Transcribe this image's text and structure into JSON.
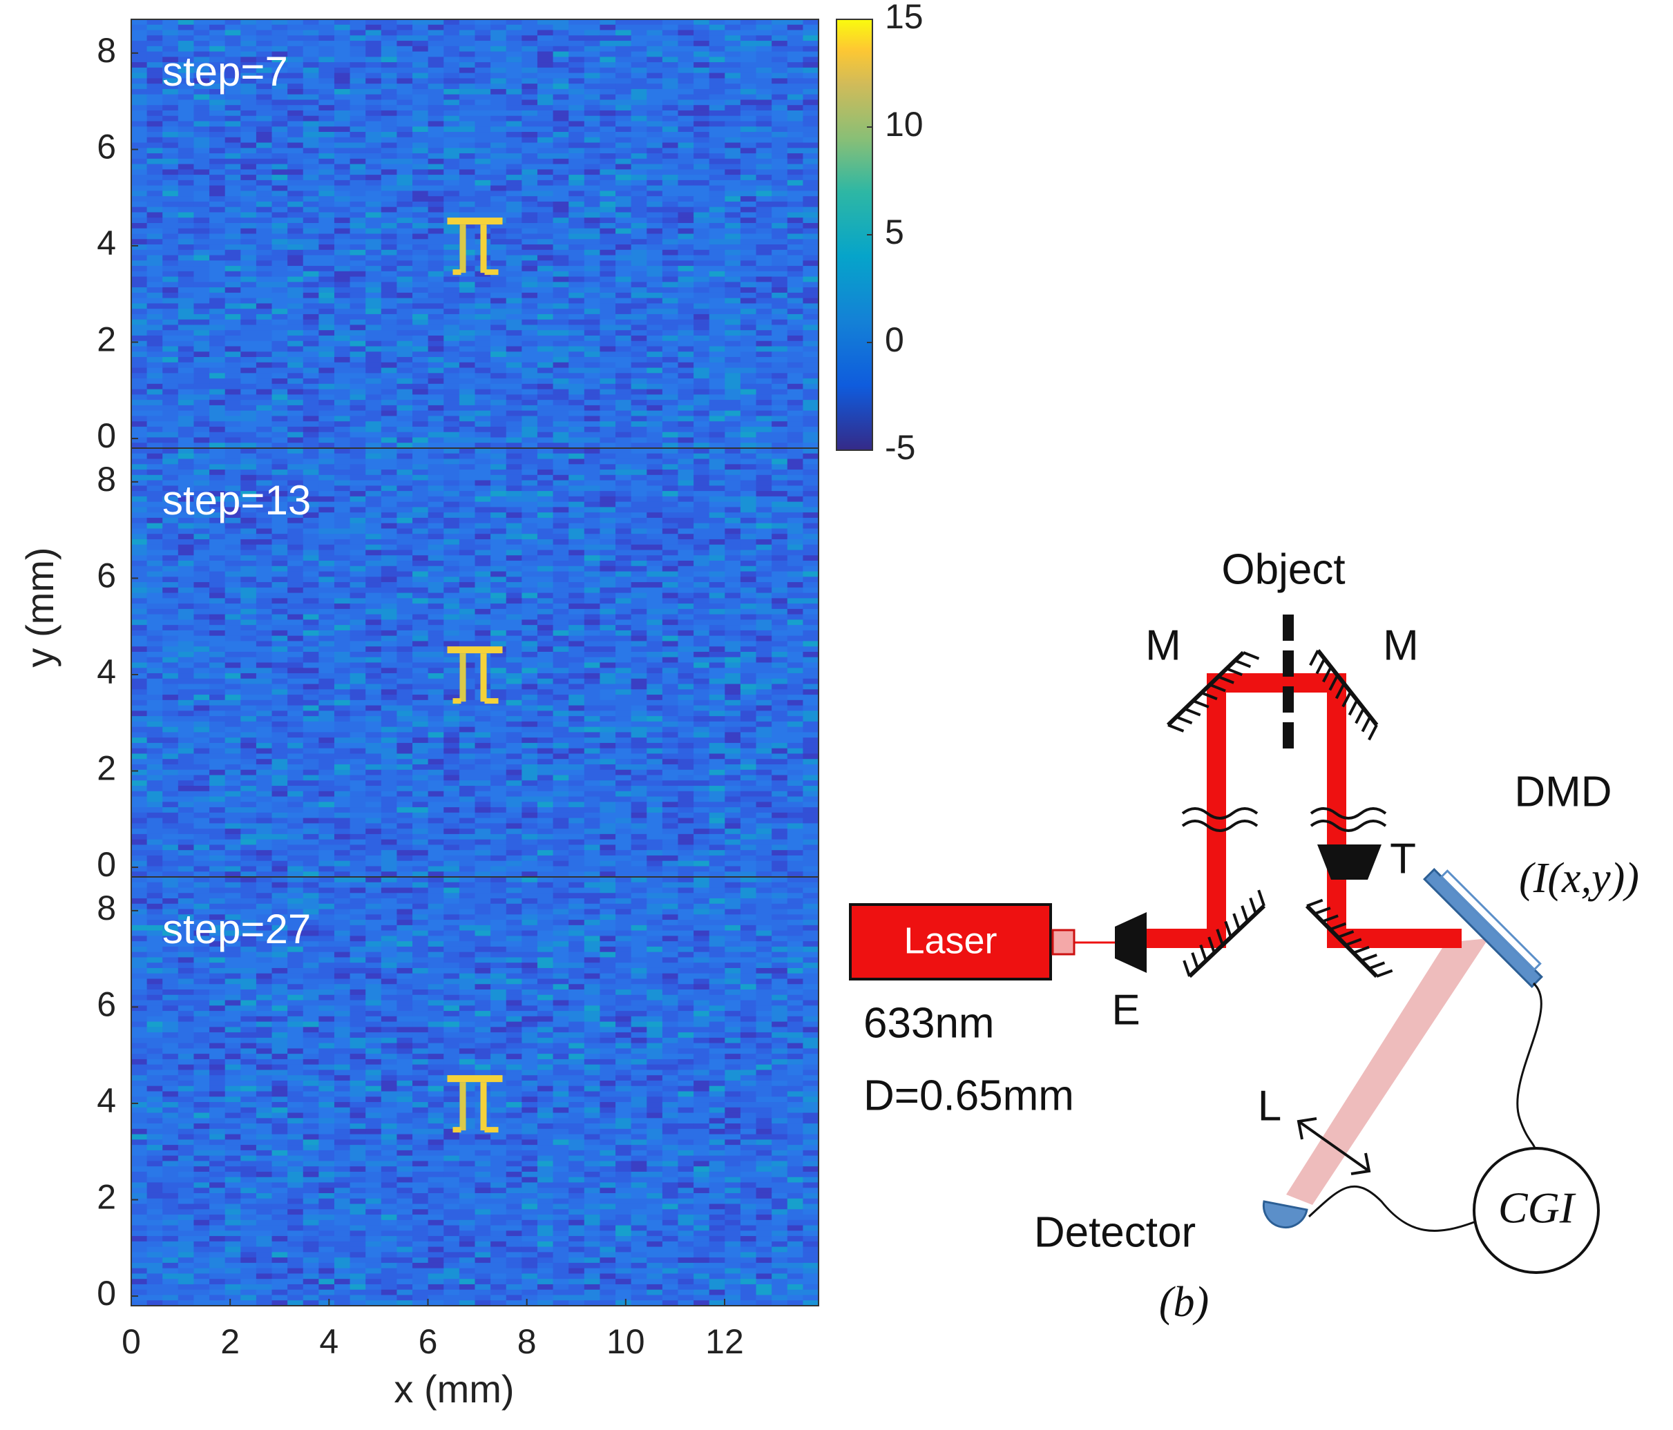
{
  "chart_data": [
    {
      "type": "heatmap",
      "annotation": "step=7",
      "xlim": [
        0,
        13.9
      ],
      "ylim": [
        -0.2,
        8.7
      ],
      "yticks": [
        0,
        2,
        4,
        6,
        8
      ],
      "colorbar": {
        "lim": [
          -5,
          15
        ],
        "ticks": [
          -5,
          0,
          5,
          10,
          15
        ]
      }
    },
    {
      "type": "heatmap",
      "annotation": "step=13",
      "xlim": [
        0,
        13.9
      ],
      "ylim": [
        -0.2,
        8.7
      ],
      "yticks": [
        0,
        2,
        4,
        6,
        8
      ],
      "ylabel": "y (mm)"
    },
    {
      "type": "heatmap",
      "annotation": "step=27",
      "xlim": [
        0,
        13.9
      ],
      "ylim": [
        -0.2,
        8.7
      ],
      "yticks": [
        0,
        2,
        4,
        6,
        8
      ],
      "xticks": [
        0,
        2,
        4,
        6,
        8,
        10,
        12
      ],
      "xlabel": "x (mm)"
    }
  ],
  "diagram": {
    "object": "Object",
    "mirror_left": "M",
    "mirror_right": "M",
    "dmd": "DMD",
    "dmd_signal": "(I(x,y))",
    "telescope": "T",
    "laser": "Laser",
    "expander": "E",
    "wavelength": "633nm",
    "diameter": "D=0.65mm",
    "lens": "L",
    "detector": "Detector",
    "panel": "(b)",
    "cgi": "CGI"
  }
}
